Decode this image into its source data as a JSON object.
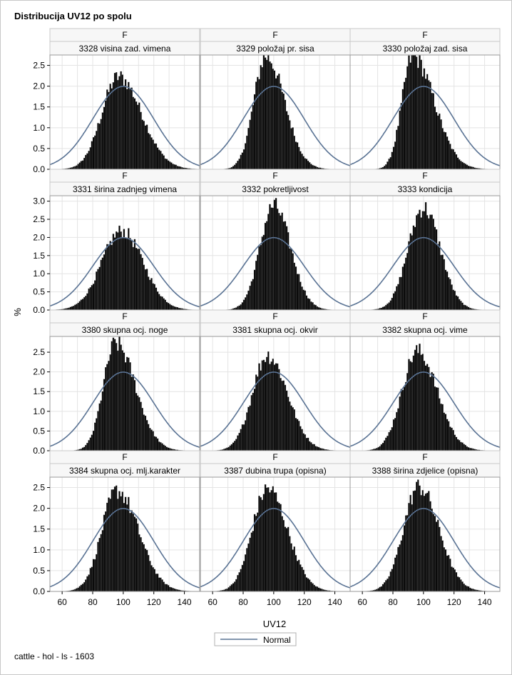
{
  "title": "Distribucija UV12 po spolu",
  "footnote": "cattle - hol - ls - 1603",
  "chart_data": {
    "type": "histogram-panel",
    "xlabel": "UV12",
    "ylabel": "%",
    "xlim": [
      52,
      150
    ],
    "xticks": [
      60,
      80,
      100,
      120,
      140
    ],
    "legend": {
      "position": "bottom-center",
      "entries": [
        "Normal"
      ]
    },
    "normal_curve": {
      "mean": 100,
      "sd": 20,
      "color": "#5a7394"
    },
    "grid": true,
    "row_yaxes": [
      {
        "ylim": [
          0,
          2.75
        ],
        "ticks": [
          0.0,
          0.5,
          1.0,
          1.5,
          2.0,
          2.5
        ]
      },
      {
        "ylim": [
          0,
          3.15
        ],
        "ticks": [
          0.0,
          0.5,
          1.0,
          1.5,
          2.0,
          2.5,
          3.0
        ]
      },
      {
        "ylim": [
          0,
          2.9
        ],
        "ticks": [
          0.0,
          0.5,
          1.0,
          1.5,
          2.0,
          2.5
        ]
      },
      {
        "ylim": [
          0,
          2.75
        ],
        "ticks": [
          0.0,
          0.5,
          1.0,
          1.5,
          2.0,
          2.5
        ]
      }
    ],
    "panels": [
      {
        "group": "F",
        "trait": "3328 visina zad. vimena",
        "peak_x": 97,
        "peak_pct": 2.25,
        "sigma_left": 11,
        "sigma_right": 15
      },
      {
        "group": "F",
        "trait": "3329 položaj pr. sisa",
        "peak_x": 95,
        "peak_pct": 2.75,
        "sigma_left": 8,
        "sigma_right": 12
      },
      {
        "group": "F",
        "trait": "3330 položaj zad. sisa",
        "peak_x": 93,
        "peak_pct": 2.75,
        "sigma_left": 7,
        "sigma_right": 14
      },
      {
        "group": "F",
        "trait": "3331 širina zadnjeg vimena",
        "peak_x": 99,
        "peak_pct": 2.2,
        "sigma_left": 13,
        "sigma_right": 14
      },
      {
        "group": "F",
        "trait": "3332 pokretljivost",
        "peak_x": 100,
        "peak_pct": 2.9,
        "sigma_left": 9,
        "sigma_right": 11
      },
      {
        "group": "F",
        "trait": "3333 kondicija",
        "peak_x": 100,
        "peak_pct": 2.85,
        "sigma_left": 10,
        "sigma_right": 11
      },
      {
        "group": "F",
        "trait": "3380 skupna ocj. noge",
        "peak_x": 95,
        "peak_pct": 2.75,
        "sigma_left": 8,
        "sigma_right": 13
      },
      {
        "group": "F",
        "trait": "3381 skupna ocj. okvir",
        "peak_x": 96,
        "peak_pct": 2.45,
        "sigma_left": 10,
        "sigma_right": 13
      },
      {
        "group": "F",
        "trait": "3382 skupna ocj. vime",
        "peak_x": 96,
        "peak_pct": 2.55,
        "sigma_left": 10,
        "sigma_right": 13
      },
      {
        "group": "F",
        "trait": "3384 skupna ocj. mlj.karakter",
        "peak_x": 96,
        "peak_pct": 2.45,
        "sigma_left": 10,
        "sigma_right": 14
      },
      {
        "group": "F",
        "trait": "3387 dubina trupa (opisna)",
        "peak_x": 96,
        "peak_pct": 2.5,
        "sigma_left": 10,
        "sigma_right": 13
      },
      {
        "group": "F",
        "trait": "3388 širina zdjelice (opisna)",
        "peak_x": 97,
        "peak_pct": 2.55,
        "sigma_left": 10,
        "sigma_right": 13
      }
    ]
  }
}
